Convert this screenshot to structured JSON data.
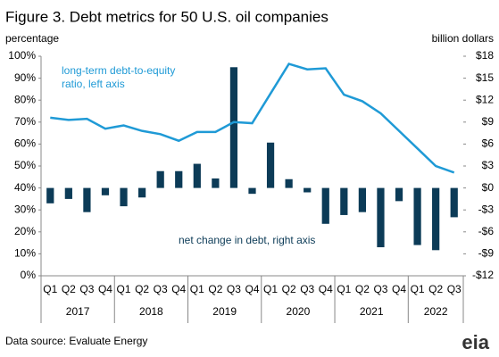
{
  "chart_data": {
    "type": "bar-line",
    "title": "Figure 3. Debt metrics for 50 U.S. oil companies",
    "y_label": "percentage",
    "y2_label": "billion dollars",
    "categories": [
      "Q1",
      "Q2",
      "Q3",
      "Q4",
      "Q1",
      "Q2",
      "Q3",
      "Q4",
      "Q1",
      "Q2",
      "Q3",
      "Q4",
      "Q1",
      "Q2",
      "Q3",
      "Q4",
      "Q1",
      "Q2",
      "Q3",
      "Q4",
      "Q1",
      "Q2",
      "Q3"
    ],
    "years": [
      "2017",
      "2018",
      "2019",
      "2020",
      "2021",
      "2022"
    ],
    "series": [
      {
        "name": "long-term debt-to-equity ratio",
        "type": "line",
        "color": "#1f9ad6",
        "axis": "y",
        "values": [
          72,
          71,
          71.5,
          67,
          68.5,
          66,
          64.5,
          61.5,
          65.5,
          65.5,
          70,
          69.5,
          83,
          96.5,
          94,
          94.5,
          82.5,
          79.5,
          74,
          66,
          58,
          50,
          47
        ]
      },
      {
        "name": "net change in debt",
        "type": "bar",
        "color": "#0c3b57",
        "axis": "y2",
        "values": [
          -2.1,
          -1.5,
          -3.3,
          -1,
          -2.5,
          -1.3,
          2.3,
          2.3,
          3.3,
          1.3,
          16.5,
          -0.8,
          6.2,
          1.2,
          -0.6,
          -4.9,
          -3.7,
          -3.3,
          -8.1,
          -1.8,
          -7.8,
          -8.5,
          -4
        ]
      }
    ],
    "annotations": [
      {
        "lines": [
          "long-term debt-to-equity",
          "ratio, left axis"
        ],
        "color": "#1f9ad6"
      },
      {
        "lines": [
          "net change in debt, right axis"
        ],
        "color": "#0c3b57"
      }
    ],
    "ylim": [
      0,
      100
    ],
    "yticks": [
      {
        "value": 0,
        "label": "0%"
      },
      {
        "value": 10,
        "label": "10%"
      },
      {
        "value": 20,
        "label": "20%"
      },
      {
        "value": 30,
        "label": "30%"
      },
      {
        "value": 40,
        "label": "40%"
      },
      {
        "value": 50,
        "label": "50%"
      },
      {
        "value": 60,
        "label": "60%"
      },
      {
        "value": 70,
        "label": "70%"
      },
      {
        "value": 80,
        "label": "80%"
      },
      {
        "value": 90,
        "label": "90%"
      },
      {
        "value": 100,
        "label": "100%"
      }
    ],
    "y2lim": [
      -12,
      18
    ],
    "y2ticks": [
      {
        "value": -12,
        "label": "-$12"
      },
      {
        "value": -9,
        "label": "-$9"
      },
      {
        "value": -6,
        "label": "-$6"
      },
      {
        "value": -3,
        "label": "-$3"
      },
      {
        "value": 0,
        "label": "$0"
      },
      {
        "value": 3,
        "label": "$3"
      },
      {
        "value": 6,
        "label": "$6"
      },
      {
        "value": 9,
        "label": "$9"
      },
      {
        "value": 12,
        "label": "$12"
      },
      {
        "value": 15,
        "label": "$15"
      },
      {
        "value": 18,
        "label": "$18"
      }
    ],
    "source": "Data source: Evaluate Energy",
    "logo": "eia"
  }
}
